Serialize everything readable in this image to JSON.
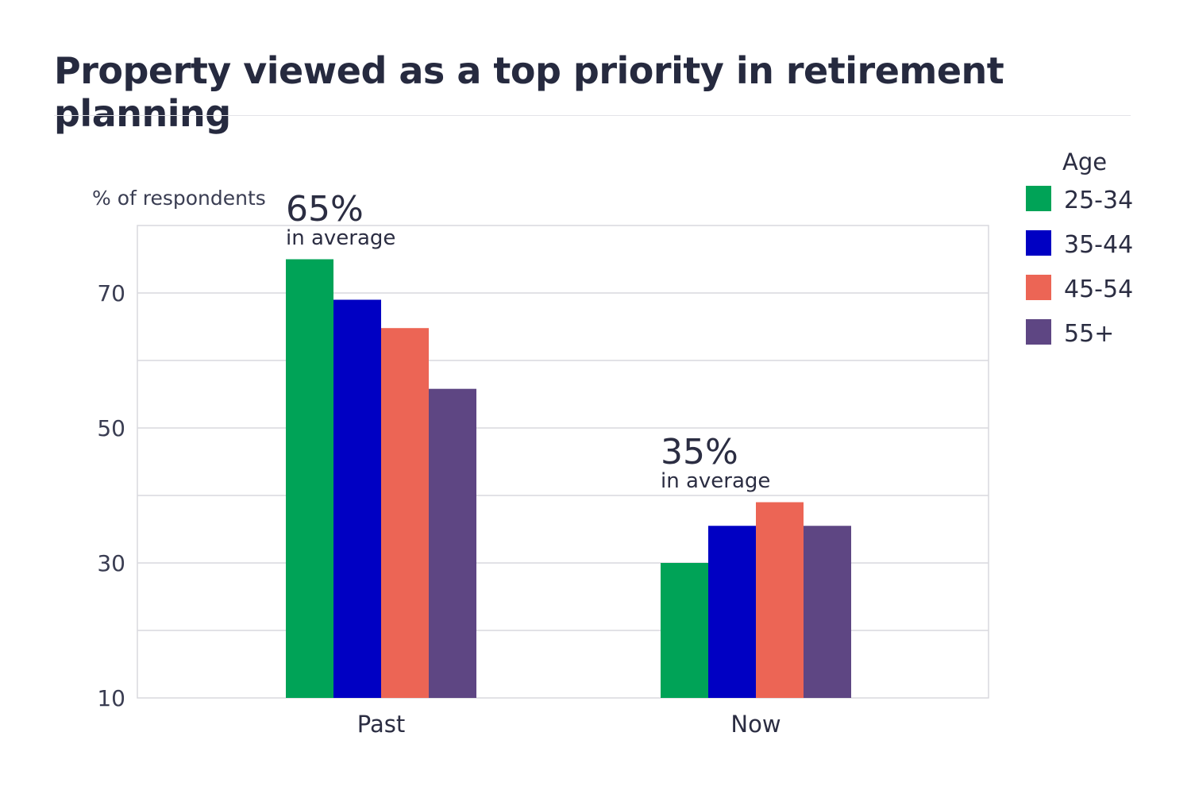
{
  "chart_data": {
    "type": "bar",
    "title": "Property viewed as a top priority in retirement planning",
    "ylabel": "% of respondents",
    "ylim": [
      10,
      80
    ],
    "yticks": [
      10,
      30,
      50,
      70
    ],
    "grid_step": 10,
    "grid": true,
    "categories": [
      "Past",
      "Now"
    ],
    "legend": {
      "title": "Age",
      "placement": "top-right"
    },
    "series": [
      {
        "name": "25-34",
        "color": "#00a357",
        "values": [
          75,
          30
        ]
      },
      {
        "name": "35-44",
        "color": "#0000c3",
        "values": [
          69,
          35.5
        ]
      },
      {
        "name": "45-54",
        "color": "#ec6555",
        "values": [
          64.8,
          39
        ]
      },
      {
        "name": "55+",
        "color": "#5e4683",
        "values": [
          55.8,
          35.5
        ]
      }
    ],
    "annotations": [
      {
        "category": "Past",
        "value": "65%",
        "text": "in average"
      },
      {
        "category": "Now",
        "value": "35%",
        "text": "in average"
      }
    ]
  }
}
